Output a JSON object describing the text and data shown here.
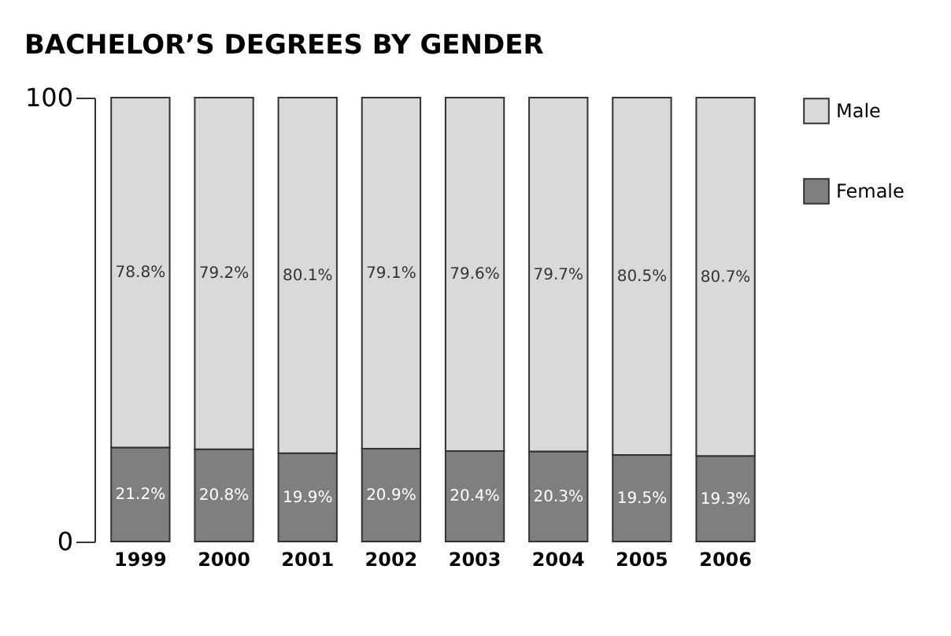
{
  "chart_data": {
    "type": "bar",
    "title": "BACHELOR’S DEGREES BY GENDER",
    "stacked": true,
    "categories": [
      "1999",
      "2000",
      "2001",
      "2002",
      "2003",
      "2004",
      "2005",
      "2006"
    ],
    "series": [
      {
        "name": "Female",
        "color": "#7f7f7f",
        "values": [
          21.2,
          20.8,
          19.9,
          20.9,
          20.4,
          20.3,
          19.5,
          19.3
        ],
        "value_labels": [
          "21.2%",
          "20.8%",
          "19.9%",
          "20.9%",
          "20.4%",
          "20.3%",
          "19.5%",
          "19.3%"
        ]
      },
      {
        "name": "Male",
        "color": "#d9d9d9",
        "values": [
          78.8,
          79.2,
          80.1,
          79.1,
          79.6,
          79.7,
          80.5,
          80.7
        ],
        "value_labels": [
          "78.8%",
          "79.2%",
          "80.1%",
          "79.1%",
          "79.6%",
          "79.7%",
          "80.5%",
          "80.7%"
        ]
      }
    ],
    "ylim": [
      0,
      100
    ],
    "yticks": [
      0,
      100
    ],
    "grid": false,
    "legend": "right"
  }
}
